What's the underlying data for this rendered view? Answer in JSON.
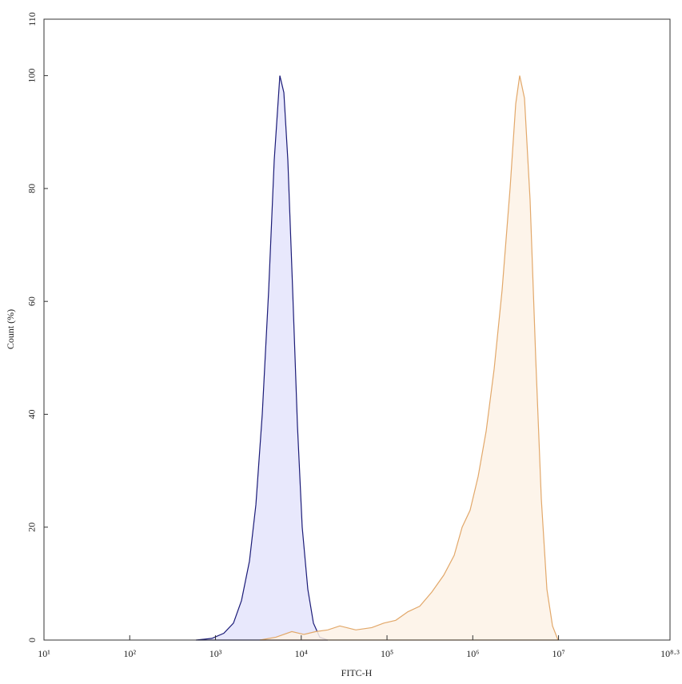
{
  "chart_data": {
    "type": "histogram-overlay",
    "x_label": "FITC-H",
    "y_label": "Count (%)",
    "xscale": "log",
    "xlim": [
      10,
      199526231
    ],
    "xticks": [
      {
        "value": 10,
        "label": "10¹"
      },
      {
        "value": 100,
        "label": "10²"
      },
      {
        "value": 1000,
        "label": "10³"
      },
      {
        "value": 10000,
        "label": "10⁴"
      },
      {
        "value": 100000,
        "label": "10⁵"
      },
      {
        "value": 1000000,
        "label": "10⁶"
      },
      {
        "value": 10000000,
        "label": "10⁷"
      },
      {
        "value": 199526231,
        "label": "10⁸·³"
      }
    ],
    "ylim": [
      0,
      110
    ],
    "yticks": [
      0,
      20,
      40,
      60,
      80,
      100,
      110
    ],
    "series": [
      {
        "color": "#1b1b78",
        "fill": "#e4e4fb",
        "x": [
          590,
          908,
          1250,
          1620,
          2010,
          2490,
          2960,
          3510,
          4170,
          4840,
          5630,
          6270,
          6980,
          7940,
          9030,
          10260,
          11930,
          13870,
          16450,
          20400
        ],
        "values": [
          0,
          0.3,
          1.2,
          3,
          7,
          14,
          24,
          40,
          62,
          85,
          100,
          97,
          85,
          62,
          38,
          20,
          9,
          3,
          0.5,
          0
        ]
      },
      {
        "color": "#e2a86a",
        "fill": "#fdf2e6",
        "x": [
          3290,
          5060,
          7760,
          10710,
          14800,
          20400,
          28170,
          43300,
          66400,
          91600,
          126500,
          174600,
          241000,
          332700,
          459000,
          607000,
          752000,
          931000,
          1156000,
          1432000,
          1775000,
          2198000,
          2723000,
          3169000,
          3525000,
          4010000,
          4660000,
          5420000,
          6300000,
          7320000,
          8510000,
          9880000
        ],
        "values": [
          0,
          0.5,
          1.5,
          1,
          1.5,
          1.8,
          2.5,
          1.8,
          2.2,
          3,
          3.5,
          5,
          6,
          8.5,
          11.5,
          15,
          20,
          23,
          29,
          37,
          48,
          62,
          80,
          95,
          100,
          96,
          78,
          50,
          25,
          9,
          2.5,
          0
        ]
      }
    ]
  }
}
